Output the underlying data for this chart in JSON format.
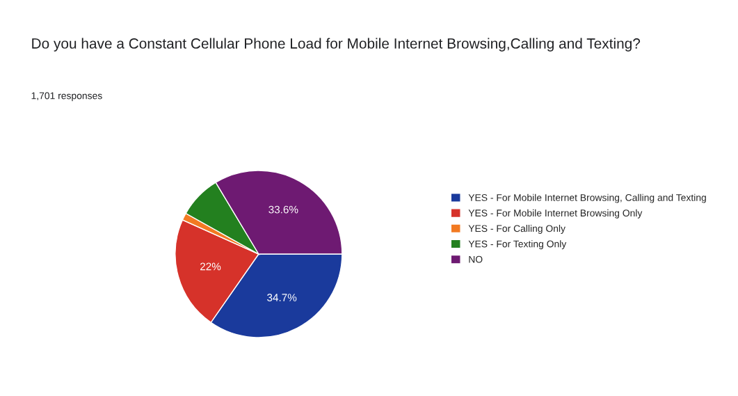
{
  "chart_data": {
    "type": "pie",
    "title": "Do you have a Constant Cellular Phone Load for Mobile Internet Browsing,Calling and Texting?",
    "subtitle": "1,701 responses",
    "categories": [
      "YES - For Mobile Internet Browsing, Calling and Texting",
      "YES - For Mobile Internet Browsing Only",
      "YES - For Calling Only",
      "YES - For Texting Only",
      "NO"
    ],
    "values": [
      34.7,
      22,
      1.4,
      8.3,
      33.6
    ],
    "colors": [
      "#1a3a9c",
      "#d6322a",
      "#f27a22",
      "#23801f",
      "#6e1a72"
    ],
    "value_labels": [
      "34.7%",
      "22%",
      null,
      null,
      "33.6%"
    ],
    "legend": "right"
  }
}
